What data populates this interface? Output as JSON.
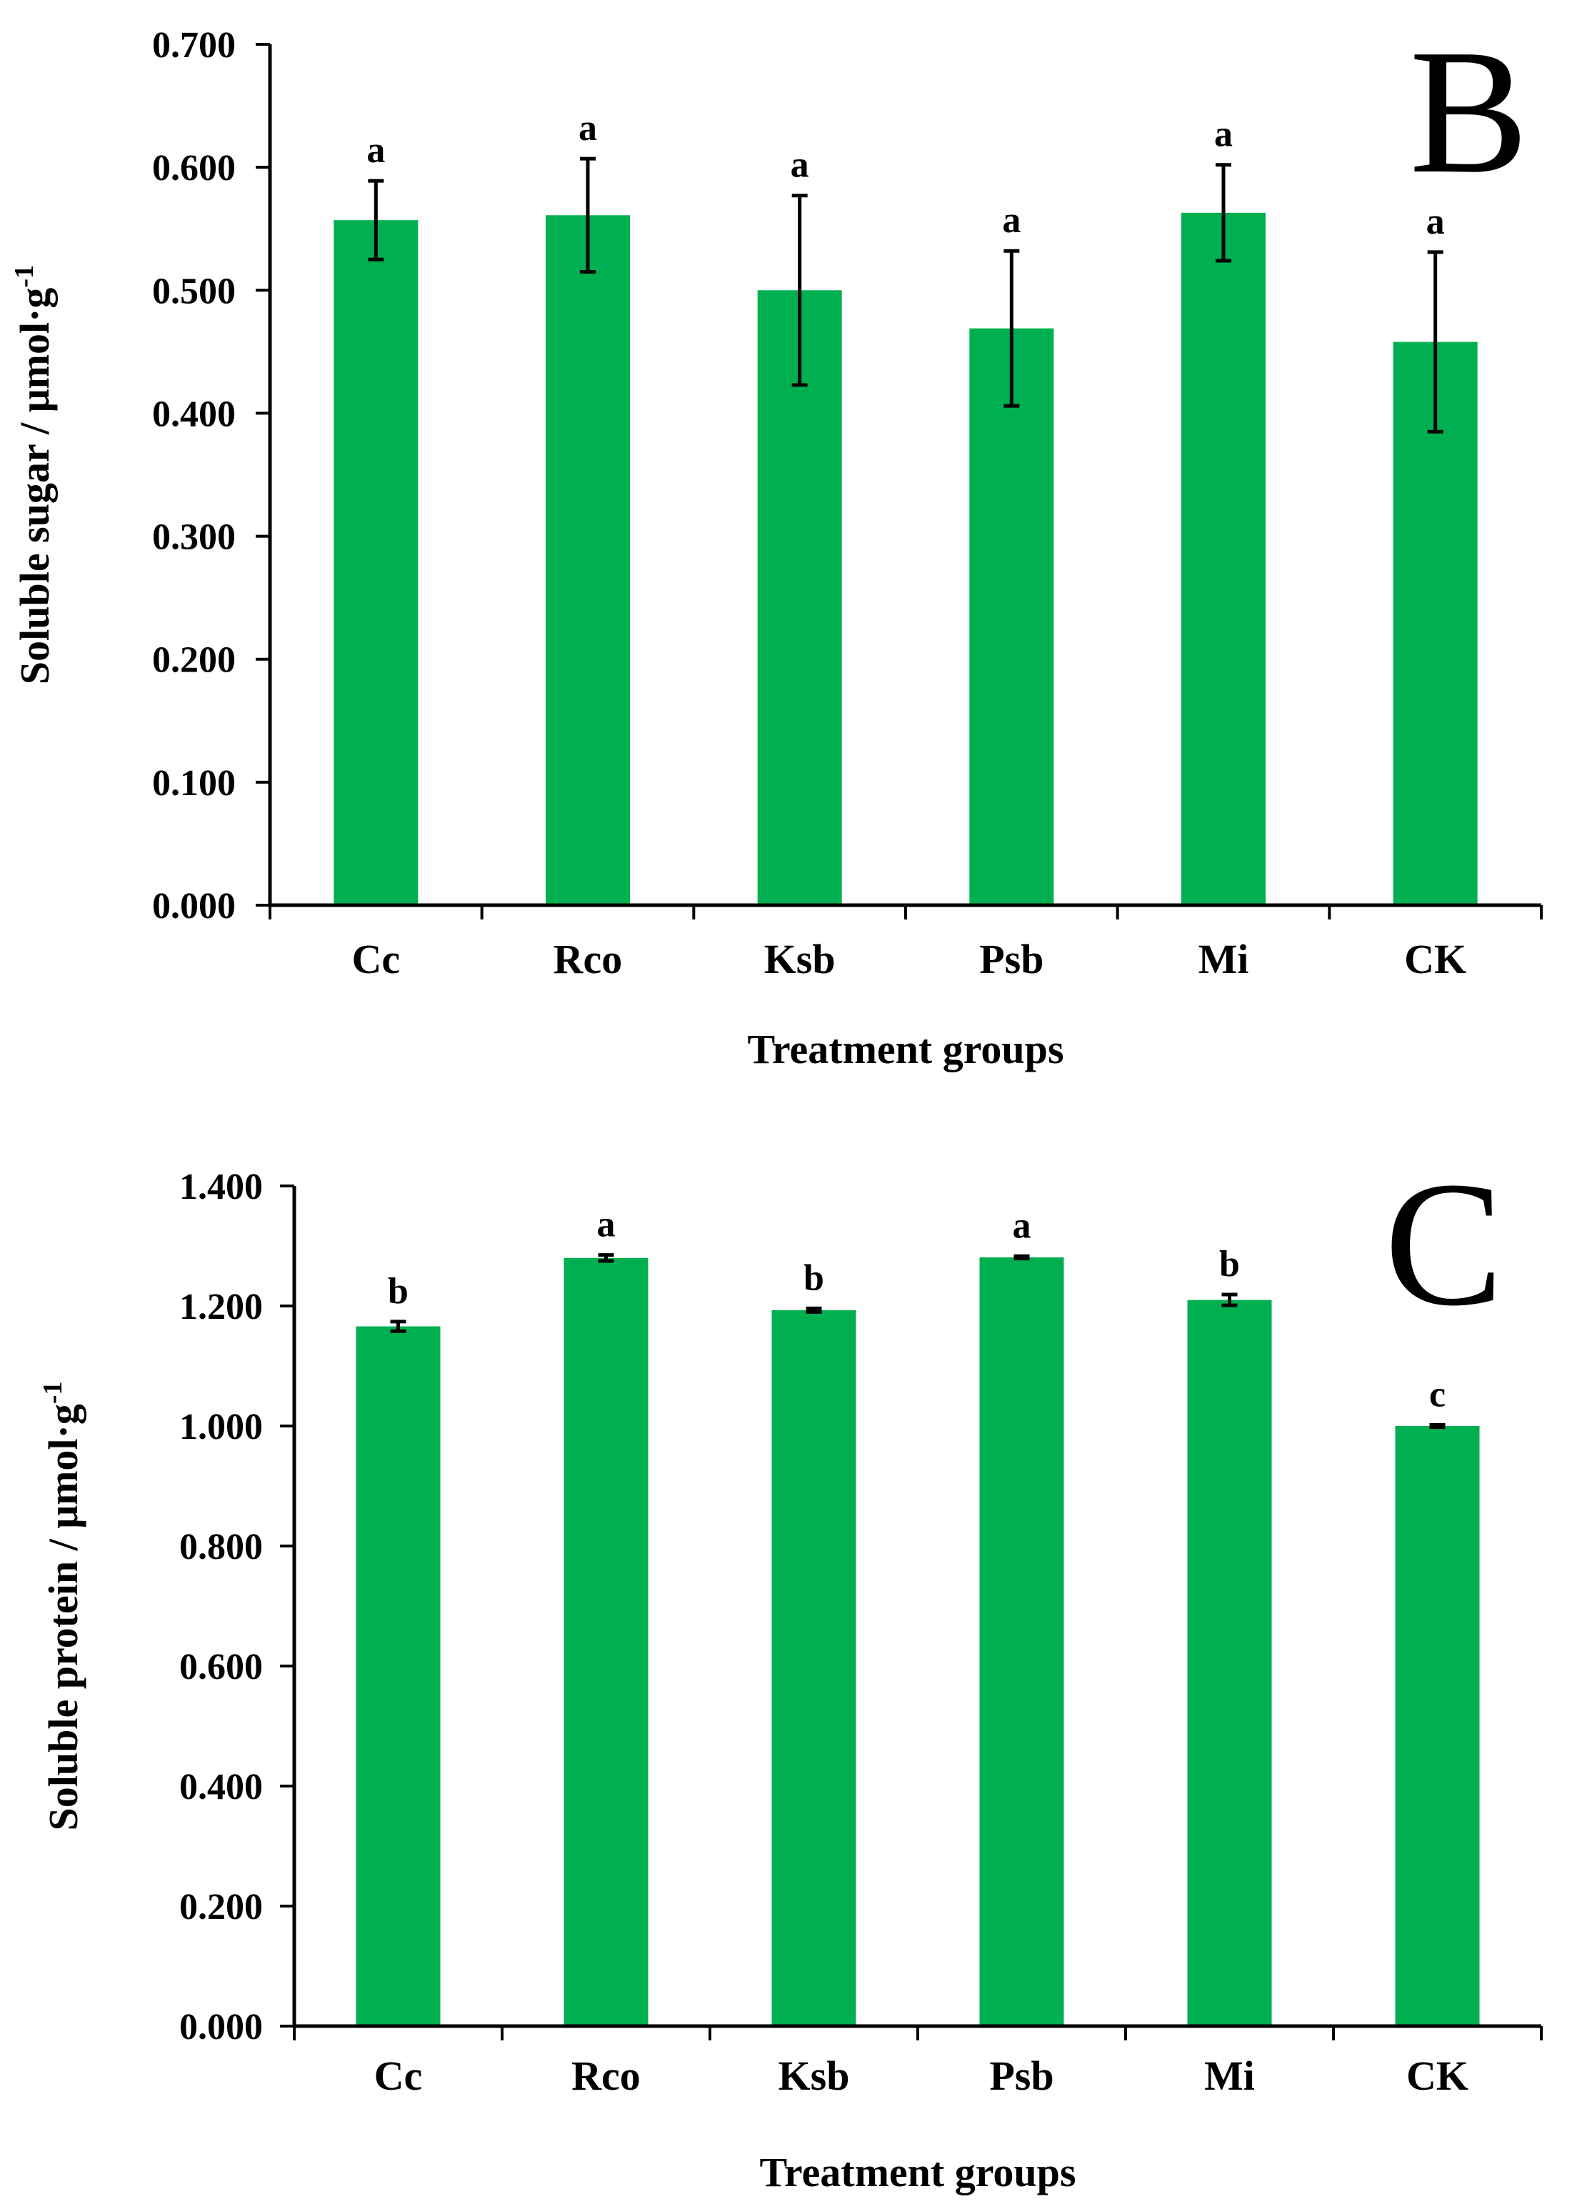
{
  "chart_data": [
    {
      "type": "bar",
      "panel_label": "B",
      "categories": [
        "Cc",
        "Rco",
        "Ksb",
        "Psb",
        "Mi",
        "CK"
      ],
      "values": [
        0.557,
        0.561,
        0.5,
        0.469,
        0.563,
        0.458
      ],
      "errors": [
        0.032,
        0.046,
        0.077,
        0.063,
        0.039,
        0.073
      ],
      "significance": [
        "a",
        "a",
        "a",
        "a",
        "a",
        "a"
      ],
      "xlabel": "Treatment groups",
      "ylabel": "Soluble sugar / μmol·g",
      "ylabel_sup": "-1",
      "ylim": [
        0,
        0.7
      ],
      "yticks": [
        "0.000",
        "0.100",
        "0.200",
        "0.300",
        "0.400",
        "0.500",
        "0.600",
        "0.700"
      ],
      "color": "#00B050",
      "grid": false,
      "legend": "none"
    },
    {
      "type": "bar",
      "panel_label": "C",
      "categories": [
        "Cc",
        "Rco",
        "Ksb",
        "Psb",
        "Mi",
        "CK"
      ],
      "values": [
        1.166,
        1.28,
        1.193,
        1.281,
        1.21,
        1.0
      ],
      "errors": [
        0.008,
        0.005,
        0.003,
        0.002,
        0.009,
        0.002
      ],
      "significance": [
        "b",
        "a",
        "b",
        "a",
        "b",
        "c"
      ],
      "xlabel": "Treatment groups",
      "ylabel": "Soluble protein / μmol·g",
      "ylabel_sup": "-1",
      "ylim": [
        0,
        1.4
      ],
      "yticks": [
        "0.000",
        "0.200",
        "0.400",
        "0.600",
        "0.800",
        "1.000",
        "1.200",
        "1.400"
      ],
      "color": "#00B050",
      "grid": false,
      "legend": "none"
    }
  ]
}
